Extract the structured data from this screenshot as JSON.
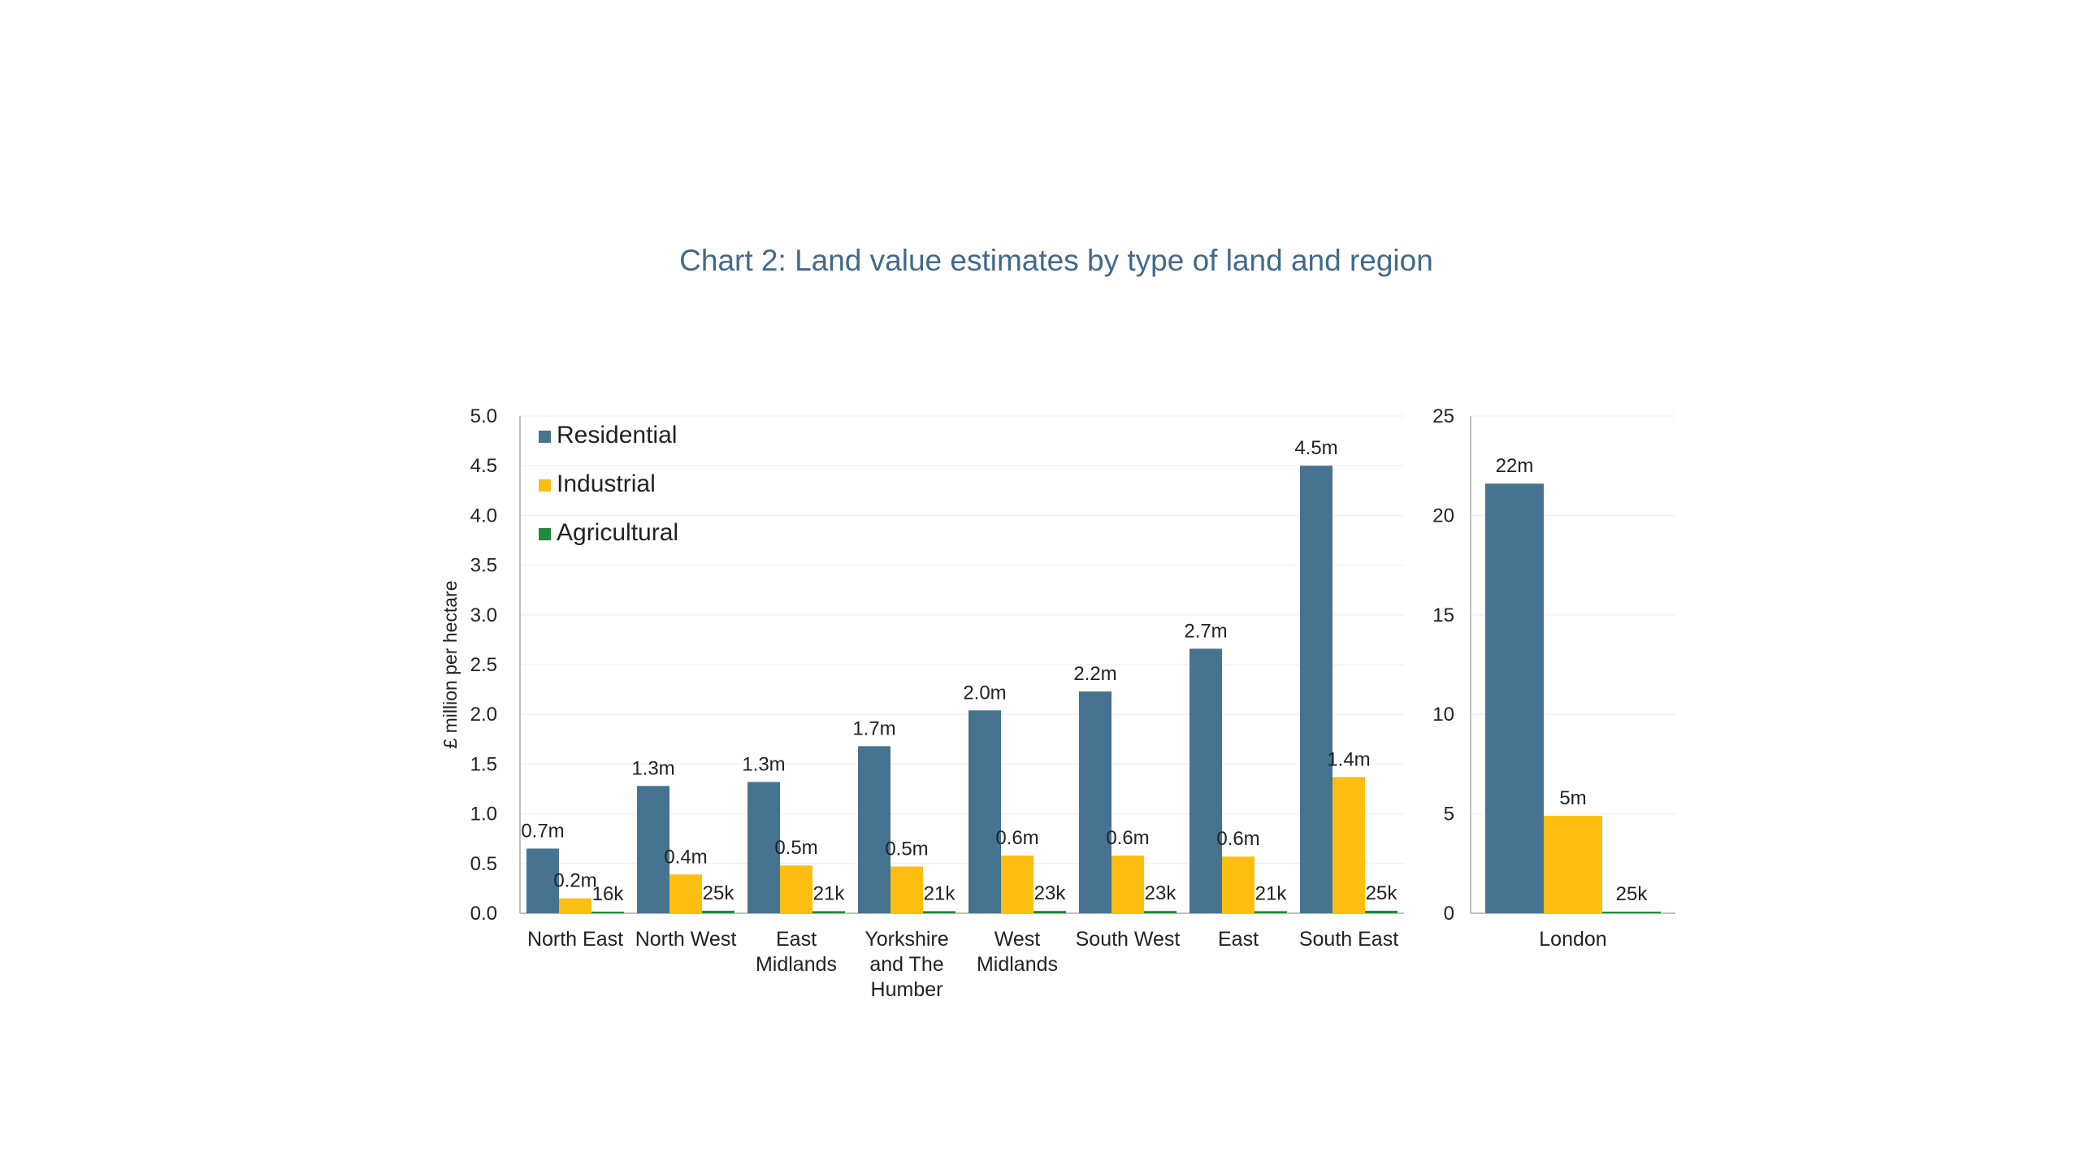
{
  "title": "Chart 2: Land value estimates by type of land and region",
  "colors": {
    "title": "#41698c",
    "residential": "#467390",
    "industrial": "#fcbe10",
    "agricultural": "#1e8a3c",
    "axis": "#bfbfbf",
    "grid": "#f2f2f2",
    "text": "#222222"
  },
  "chart_data": [
    {
      "id": "regions",
      "type": "bar",
      "ylabel": "£ million per hectare",
      "ylim": [
        0,
        5
      ],
      "yticks": [
        "0.0",
        "0.5",
        "1.0",
        "1.5",
        "2.0",
        "2.5",
        "3.0",
        "3.5",
        "4.0",
        "4.5",
        "5.0"
      ],
      "legend": "top-left",
      "categories": [
        [
          "North East"
        ],
        [
          "North West"
        ],
        [
          "East",
          "Midlands"
        ],
        [
          "Yorkshire",
          "and The",
          "Humber"
        ],
        [
          "West",
          "Midlands"
        ],
        [
          "South West"
        ],
        [
          "East"
        ],
        [
          "South East"
        ]
      ],
      "series": [
        {
          "name": "Residential",
          "key": "residential",
          "values": [
            0.65,
            1.28,
            1.32,
            1.68,
            2.04,
            2.23,
            2.66,
            4.5
          ],
          "labels": [
            "0.7m",
            "1.3m",
            "1.3m",
            "1.7m",
            "2.0m",
            "2.2m",
            "2.7m",
            "4.5m"
          ]
        },
        {
          "name": "Industrial",
          "key": "industrial",
          "values": [
            0.15,
            0.39,
            0.48,
            0.47,
            0.58,
            0.58,
            0.57,
            1.37
          ],
          "labels": [
            "0.2m",
            "0.4m",
            "0.5m",
            "0.5m",
            "0.6m",
            "0.6m",
            "0.6m",
            "1.4m"
          ]
        },
        {
          "name": "Agricultural",
          "key": "agricultural",
          "values": [
            0.016,
            0.025,
            0.021,
            0.021,
            0.023,
            0.023,
            0.021,
            0.025
          ],
          "labels": [
            "16k",
            "25k",
            "21k",
            "21k",
            "23k",
            "23k",
            "21k",
            "25k"
          ]
        }
      ]
    },
    {
      "id": "london",
      "type": "bar",
      "ylim": [
        0,
        25
      ],
      "yticks": [
        "0",
        "5",
        "10",
        "15",
        "20",
        "25"
      ],
      "categories": [
        [
          "London"
        ]
      ],
      "series": [
        {
          "name": "Residential",
          "key": "residential",
          "values": [
            21.6
          ],
          "labels": [
            "22m"
          ]
        },
        {
          "name": "Industrial",
          "key": "industrial",
          "values": [
            4.9
          ],
          "labels": [
            "5m"
          ]
        },
        {
          "name": "Agricultural",
          "key": "agricultural",
          "values": [
            0.025
          ],
          "labels": [
            "25k"
          ]
        }
      ]
    }
  ]
}
